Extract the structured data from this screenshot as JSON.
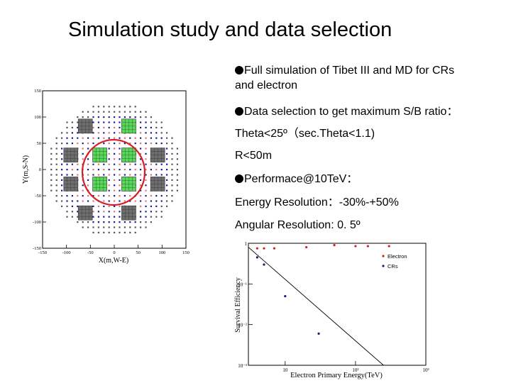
{
  "slide": {
    "title": "Simulation study and data selection",
    "bullets": [
      {
        "text": "Full simulation of Tibet III and MD  for CRs",
        "bullet": true
      },
      {
        "text": "and electron",
        "bullet": false
      },
      {
        "text": "Data selection to get maximum S/B ratio：",
        "bullet": true
      },
      {
        "text": "Theta<25º（sec.Theta<1.1)",
        "bullet": false
      },
      {
        "text": "R<50m",
        "bullet": false
      },
      {
        "text": "Performace@10TeV：",
        "bullet": true
      },
      {
        "text": "Energy Resolution：-30%-+50%",
        "bullet": false
      },
      {
        "text": "Angular Resolution: 0. 5º",
        "bullet": false
      }
    ]
  },
  "layout_plot": {
    "xlabel": "X(m,W-E)",
    "ylabel": "Y(m,S-N)",
    "x_ticks": [
      "-150",
      "-100",
      "-50",
      "0",
      "50",
      "100",
      "150"
    ],
    "y_ticks": [
      "150",
      "100",
      "50",
      "0",
      "-50",
      "-100",
      "-150"
    ],
    "colors": {
      "frame": "#000000",
      "circle": "#d42020",
      "md_gray": "#6e6e6e",
      "md_green": "#58d858",
      "dots": "#1a1aa0",
      "pink": "#e07080"
    }
  },
  "chart_data": {
    "type": "scatter",
    "xlabel": "Electron Primary Energy(TeV)",
    "ylabel": "Survival Efficiency",
    "x_scale": "log",
    "y_scale": "log",
    "x_ticks": [
      "10",
      "10²",
      "10³"
    ],
    "y_ticks": [
      "1",
      "10⁻¹",
      "10⁻²",
      "10⁻³"
    ],
    "xlim": [
      3,
      1000
    ],
    "ylim": [
      0.001,
      1
    ],
    "legend_position": "top-right",
    "series": [
      {
        "name": "Electron",
        "color": "#d42020",
        "x": [
          4,
          5,
          7,
          20,
          50,
          100,
          150,
          300
        ],
        "y": [
          0.75,
          0.75,
          0.75,
          0.8,
          0.9,
          0.85,
          0.85,
          0.85
        ]
      },
      {
        "name": "CRs",
        "color": "#1a1a80",
        "x": [
          4,
          5,
          10,
          30
        ],
        "y": [
          0.45,
          0.3,
          0.05,
          0.006
        ]
      }
    ],
    "fit_line": {
      "x": [
        3,
        250
      ],
      "y": [
        0.8,
        0.001
      ]
    }
  }
}
